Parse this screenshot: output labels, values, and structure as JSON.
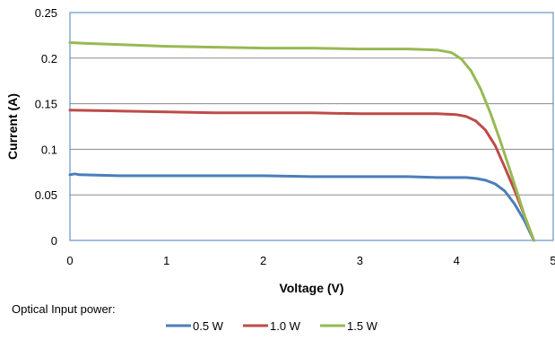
{
  "chart_data": {
    "type": "line",
    "title": "",
    "xlabel": "Voltage (V)",
    "ylabel": "Current (A)",
    "xlim": [
      0,
      5
    ],
    "ylim": [
      0,
      0.25
    ],
    "x_ticks": [
      "0",
      "1",
      "2",
      "3",
      "4",
      "5"
    ],
    "y_ticks": [
      "0",
      "0.05",
      "0.1",
      "0.15",
      "0.2",
      "0.25"
    ],
    "grid": "horizontal",
    "legend_title": "Optical Input power:",
    "legend_position": "bottom",
    "series": [
      {
        "name": "0.5 W",
        "color": "#4a7ebb",
        "x": [
          0,
          0.05,
          0.1,
          0.5,
          1,
          1.5,
          2,
          2.5,
          3,
          3.5,
          3.8,
          4.0,
          4.1,
          4.2,
          4.3,
          4.4,
          4.5,
          4.6,
          4.7,
          4.8
        ],
        "y": [
          0.072,
          0.073,
          0.072,
          0.071,
          0.071,
          0.071,
          0.071,
          0.07,
          0.07,
          0.07,
          0.069,
          0.069,
          0.069,
          0.068,
          0.066,
          0.062,
          0.054,
          0.04,
          0.022,
          0.0
        ]
      },
      {
        "name": "1.0 W",
        "color": "#be4b48",
        "x": [
          0,
          0.5,
          1,
          1.5,
          2,
          2.5,
          3,
          3.5,
          3.8,
          4.0,
          4.1,
          4.2,
          4.3,
          4.4,
          4.5,
          4.6,
          4.7,
          4.8
        ],
        "y": [
          0.143,
          0.142,
          0.141,
          0.14,
          0.14,
          0.14,
          0.139,
          0.139,
          0.139,
          0.138,
          0.136,
          0.131,
          0.121,
          0.104,
          0.08,
          0.055,
          0.028,
          0.0
        ]
      },
      {
        "name": "1.5 W",
        "color": "#98b954",
        "x": [
          0,
          0.2,
          0.5,
          1,
          1.5,
          2,
          2.5,
          3,
          3.5,
          3.8,
          3.95,
          4.05,
          4.15,
          4.25,
          4.35,
          4.45,
          4.55,
          4.65,
          4.72,
          4.8
        ],
        "y": [
          0.217,
          0.216,
          0.215,
          0.213,
          0.212,
          0.211,
          0.211,
          0.21,
          0.21,
          0.209,
          0.206,
          0.199,
          0.186,
          0.166,
          0.14,
          0.11,
          0.078,
          0.045,
          0.022,
          0.0
        ]
      }
    ]
  }
}
